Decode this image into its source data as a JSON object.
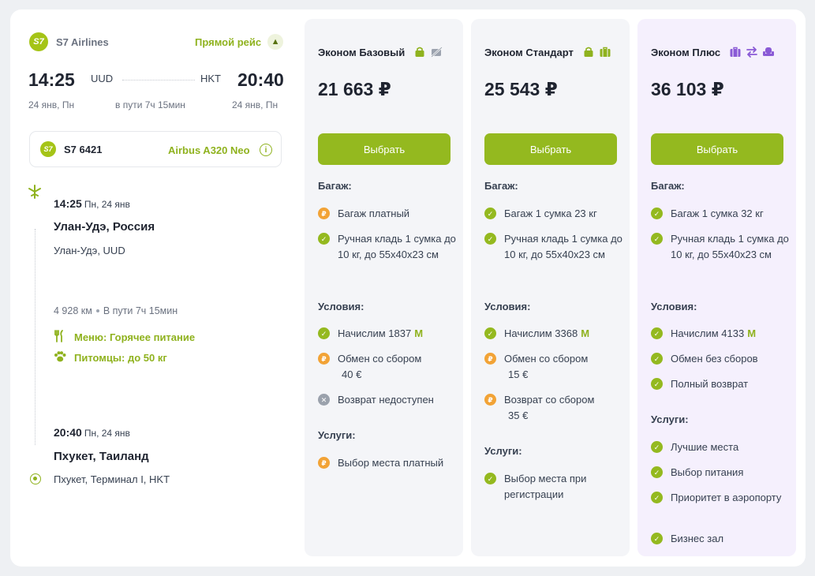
{
  "airline": {
    "name": "S7 Airlines",
    "logo_text": "S7"
  },
  "direct_label": "Прямой рейс",
  "route": {
    "dep_time": "14:25",
    "dep_code": "UUD",
    "arr_code": "HKT",
    "arr_time": "20:40",
    "dep_date": "24 янв, Пн",
    "duration": "в пути 7ч 15мин",
    "arr_date": "24 янв, Пн"
  },
  "flight": {
    "number": "S7 6421",
    "aircraft": "Airbus A320 Neo",
    "info_symbol": "i"
  },
  "departure": {
    "time": "14:25",
    "date": "Пн, 24 янв",
    "city": "Улан-Удэ, Россия",
    "airport": "Улан-Удэ, UUD"
  },
  "stats": {
    "distance": "4 928 км",
    "duration": "В пути 7ч 15мин"
  },
  "amenities": {
    "menu": "Меню: Горячее питание",
    "pets": "Питомцы: до 50 кг"
  },
  "arrival": {
    "time": "20:40",
    "date": "Пн, 24 янв",
    "city": "Пхукет, Таиланд",
    "airport": "Пхукет, Терминал I, HKT"
  },
  "icons": {
    "plane": "plane-takeoff-icon",
    "menu": "fork-knife-icon",
    "pets": "paw-icon",
    "bag": "bag-icon",
    "no_baggage": "no-baggage-icon",
    "luggage": "suitcase-icon",
    "exchange": "exchange-icon",
    "seat": "seat-icon"
  },
  "colors": {
    "accent": "#94b91f",
    "paid": "#f2a336",
    "unavailable": "#9aa1ac",
    "plus_bg": "#f5f0fd",
    "plus_icon": "#8a5ad6"
  },
  "labels": {
    "select": "Выбрать",
    "baggage": "Багаж:",
    "conditions": "Условия:",
    "services": "Услуги:",
    "miles_symbol": "M",
    "check_symbol": "✓",
    "paid_symbol": "₽",
    "no_symbol": "✕"
  },
  "fares": [
    {
      "name": "Эконом Базовый",
      "price": "21 663 ₽",
      "baggage": [
        "Багаж платный",
        "Ручная кладь 1 сумка до 10 кг, до 55х40х23 см"
      ],
      "miles": "Начислим 1837",
      "exchange": [
        "Обмен со сбором",
        "40 €"
      ],
      "refund": "Возврат недоступен",
      "services": [
        "Выбор места платный"
      ]
    },
    {
      "name": "Эконом Стандарт",
      "price": "25 543 ₽",
      "baggage": [
        "Багаж 1 сумка 23 кг",
        "Ручная кладь 1 сумка до 10 кг, до 55х40х23 см"
      ],
      "miles": "Начислим 3368",
      "exchange": [
        "Обмен со сбором",
        "15 €"
      ],
      "refund": [
        "Возврат со сбором",
        "35 €"
      ],
      "services": [
        "Выбор места при регистрации"
      ]
    },
    {
      "name": "Эконом Плюс",
      "price": "36 103 ₽",
      "baggage": [
        "Багаж 1 сумка 32 кг",
        "Ручная кладь 1 сумка до 10 кг, до 55х40х23 см"
      ],
      "miles": "Начислим 4133",
      "exchange": "Обмен без сборов",
      "refund": "Полный возврат",
      "services": [
        "Лучшие места",
        "Выбор питания",
        "Приоритет в аэропорту",
        "Бизнес зал"
      ]
    }
  ]
}
